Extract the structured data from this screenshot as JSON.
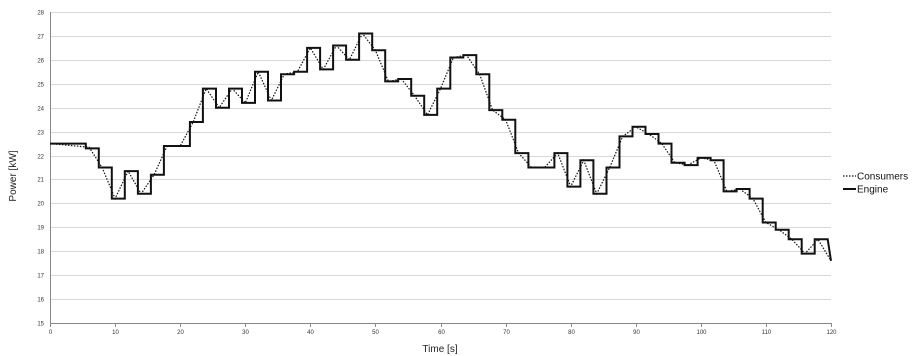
{
  "chart_data": {
    "type": "line",
    "title": "",
    "xlabel": "Time [s]",
    "ylabel": "Power [kW]",
    "xlim": [
      0,
      120
    ],
    "ylim": [
      15,
      28
    ],
    "x_ticks": [
      "0",
      "10",
      "20",
      "30",
      "40",
      "50",
      "60",
      "70",
      "80",
      "90",
      "100",
      "110",
      "120"
    ],
    "y_ticks": [
      "15",
      "16",
      "17",
      "18",
      "19",
      "20",
      "21",
      "22",
      "23",
      "24",
      "25",
      "26",
      "27",
      "28"
    ],
    "grid": true,
    "legend_position": "right",
    "colors": {
      "series": "#111111",
      "grid": "#d9d9d9",
      "axis": "#888888"
    },
    "series": [
      {
        "name": "Consumers",
        "style": "dotted",
        "points": [
          [
            0,
            22.5
          ],
          [
            6,
            22.35
          ],
          [
            8,
            21.5
          ],
          [
            10,
            20.2
          ],
          [
            12,
            21.35
          ],
          [
            14,
            20.4
          ],
          [
            16,
            21.2
          ],
          [
            18,
            22.4
          ],
          [
            20,
            22.4
          ],
          [
            22,
            23.4
          ],
          [
            24,
            24.8
          ],
          [
            26,
            24.0
          ],
          [
            28,
            24.8
          ],
          [
            30,
            24.2
          ],
          [
            32,
            25.5
          ],
          [
            34,
            24.3
          ],
          [
            36,
            25.4
          ],
          [
            38,
            25.5
          ],
          [
            40,
            26.5
          ],
          [
            42,
            25.6
          ],
          [
            44,
            26.6
          ],
          [
            46,
            26.0
          ],
          [
            48,
            27.1
          ],
          [
            50,
            26.4
          ],
          [
            52,
            25.1
          ],
          [
            54,
            25.2
          ],
          [
            56,
            24.5
          ],
          [
            58,
            23.7
          ],
          [
            60,
            24.8
          ],
          [
            62,
            26.1
          ],
          [
            64,
            26.2
          ],
          [
            66,
            25.4
          ],
          [
            68,
            23.9
          ],
          [
            70,
            23.5
          ],
          [
            72,
            22.1
          ],
          [
            74,
            21.5
          ],
          [
            76,
            21.5
          ],
          [
            78,
            22.1
          ],
          [
            80,
            20.7
          ],
          [
            82,
            21.8
          ],
          [
            84,
            20.4
          ],
          [
            86,
            21.5
          ],
          [
            88,
            22.8
          ],
          [
            90,
            23.2
          ],
          [
            92,
            22.9
          ],
          [
            94,
            22.5
          ],
          [
            96,
            21.7
          ],
          [
            98,
            21.6
          ],
          [
            100,
            21.9
          ],
          [
            102,
            21.8
          ],
          [
            104,
            20.5
          ],
          [
            106,
            20.6
          ],
          [
            108,
            20.2
          ],
          [
            110,
            19.2
          ],
          [
            112,
            18.9
          ],
          [
            114,
            18.5
          ],
          [
            116,
            17.9
          ],
          [
            118,
            18.5
          ],
          [
            120,
            17.6
          ]
        ]
      },
      {
        "name": "Engine",
        "style": "solid",
        "points": [
          [
            0,
            22.5
          ],
          [
            5.5,
            22.5
          ],
          [
            5.5,
            22.3
          ],
          [
            7.5,
            22.3
          ],
          [
            7.5,
            21.5
          ],
          [
            9.5,
            21.5
          ],
          [
            9.5,
            20.2
          ],
          [
            11.5,
            20.2
          ],
          [
            11.5,
            21.35
          ],
          [
            13.5,
            21.35
          ],
          [
            13.5,
            20.4
          ],
          [
            15.5,
            20.4
          ],
          [
            15.5,
            21.2
          ],
          [
            17.5,
            21.2
          ],
          [
            17.5,
            22.4
          ],
          [
            19.5,
            22.4
          ],
          [
            21.5,
            22.4
          ],
          [
            21.5,
            23.4
          ],
          [
            23.5,
            23.4
          ],
          [
            23.5,
            24.8
          ],
          [
            25.5,
            24.8
          ],
          [
            25.5,
            24.0
          ],
          [
            27.5,
            24.0
          ],
          [
            27.5,
            24.8
          ],
          [
            29.5,
            24.8
          ],
          [
            29.5,
            24.2
          ],
          [
            31.5,
            24.2
          ],
          [
            31.5,
            25.5
          ],
          [
            33.5,
            25.5
          ],
          [
            33.5,
            24.3
          ],
          [
            35.5,
            24.3
          ],
          [
            35.5,
            25.4
          ],
          [
            37.5,
            25.4
          ],
          [
            37.5,
            25.5
          ],
          [
            39.5,
            25.5
          ],
          [
            39.5,
            26.5
          ],
          [
            41.5,
            26.5
          ],
          [
            41.5,
            25.6
          ],
          [
            43.5,
            25.6
          ],
          [
            43.5,
            26.6
          ],
          [
            45.5,
            26.6
          ],
          [
            45.5,
            26.0
          ],
          [
            47.5,
            26.0
          ],
          [
            47.5,
            27.1
          ],
          [
            49.5,
            27.1
          ],
          [
            49.5,
            26.4
          ],
          [
            51.5,
            26.4
          ],
          [
            51.5,
            25.1
          ],
          [
            53.5,
            25.1
          ],
          [
            53.5,
            25.2
          ],
          [
            55.5,
            25.2
          ],
          [
            55.5,
            24.5
          ],
          [
            57.5,
            24.5
          ],
          [
            57.5,
            23.7
          ],
          [
            59.5,
            23.7
          ],
          [
            59.5,
            24.8
          ],
          [
            61.5,
            24.8
          ],
          [
            61.5,
            26.1
          ],
          [
            63.5,
            26.1
          ],
          [
            63.5,
            26.2
          ],
          [
            65.5,
            26.2
          ],
          [
            65.5,
            25.4
          ],
          [
            67.5,
            25.4
          ],
          [
            67.5,
            23.9
          ],
          [
            69.5,
            23.9
          ],
          [
            69.5,
            23.5
          ],
          [
            71.5,
            23.5
          ],
          [
            71.5,
            22.1
          ],
          [
            73.5,
            22.1
          ],
          [
            73.5,
            21.5
          ],
          [
            77.5,
            21.5
          ],
          [
            77.5,
            22.1
          ],
          [
            79.5,
            22.1
          ],
          [
            79.5,
            20.7
          ],
          [
            81.5,
            20.7
          ],
          [
            81.5,
            21.8
          ],
          [
            83.5,
            21.8
          ],
          [
            83.5,
            20.4
          ],
          [
            85.5,
            20.4
          ],
          [
            85.5,
            21.5
          ],
          [
            87.5,
            21.5
          ],
          [
            87.5,
            22.8
          ],
          [
            89.5,
            22.8
          ],
          [
            89.5,
            23.2
          ],
          [
            91.5,
            23.2
          ],
          [
            91.5,
            22.9
          ],
          [
            93.5,
            22.9
          ],
          [
            93.5,
            22.5
          ],
          [
            95.5,
            22.5
          ],
          [
            95.5,
            21.7
          ],
          [
            97.5,
            21.7
          ],
          [
            97.5,
            21.6
          ],
          [
            99.5,
            21.6
          ],
          [
            99.5,
            21.9
          ],
          [
            101.5,
            21.9
          ],
          [
            101.5,
            21.8
          ],
          [
            103.5,
            21.8
          ],
          [
            103.5,
            20.5
          ],
          [
            105.5,
            20.5
          ],
          [
            105.5,
            20.6
          ],
          [
            107.5,
            20.6
          ],
          [
            107.5,
            20.2
          ],
          [
            109.5,
            20.2
          ],
          [
            109.5,
            19.2
          ],
          [
            111.5,
            19.2
          ],
          [
            111.5,
            18.9
          ],
          [
            113.5,
            18.9
          ],
          [
            113.5,
            18.5
          ],
          [
            115.5,
            18.5
          ],
          [
            115.5,
            17.9
          ],
          [
            117.5,
            17.9
          ],
          [
            117.5,
            18.5
          ],
          [
            119.5,
            18.5
          ],
          [
            120,
            17.6
          ]
        ]
      }
    ]
  }
}
